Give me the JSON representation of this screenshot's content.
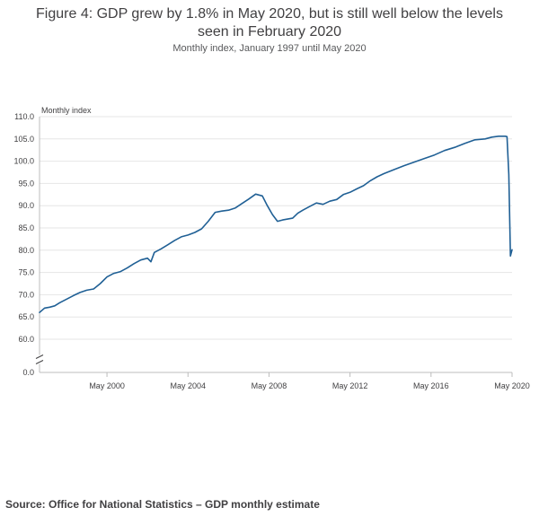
{
  "header": {
    "title_line1": "Figure 4: GDP grew by 1.8% in May 2020, but is still well below the levels",
    "title_line2": "seen in February 2020",
    "subtitle": "Monthly index, January 1997 until May 2020"
  },
  "footer": {
    "source": "Source: Office for National Statistics – GDP monthly estimate"
  },
  "colors": {
    "line": "#206095",
    "grid": "#e6e6e6",
    "axis": "#bcbcbc"
  },
  "chart_data": {
    "type": "line",
    "title": "Figure 4: GDP grew by 1.8% in May 2020, but is still well below the levels seen in February 2020",
    "subtitle": "Monthly index, January 1997 until May 2020",
    "ylabel": "Monthly index",
    "xlabel": "",
    "ylim": [
      60,
      110
    ],
    "axis_break": true,
    "y_ticks": [
      0.0,
      60.0,
      65.0,
      70.0,
      75.0,
      80.0,
      85.0,
      90.0,
      95.0,
      100.0,
      105.0,
      110.0
    ],
    "y_tick_labels": [
      "0.0",
      "60.0",
      "65.0",
      "70.0",
      "75.0",
      "80.0",
      "85.0",
      "90.0",
      "95.0",
      "100.0",
      "105.0",
      "110.0"
    ],
    "x_ticks": [
      2000.33,
      2004.33,
      2008.33,
      2012.33,
      2016.33,
      2020.33
    ],
    "x_tick_labels": [
      "May 2000",
      "May 2004",
      "May 2008",
      "May 2012",
      "May 2016",
      "May 2020"
    ],
    "xlim": [
      1997.0,
      2020.33
    ],
    "grid": true,
    "series": [
      {
        "name": "Monthly index",
        "x": [
          1997.0,
          1997.25,
          1997.5,
          1997.75,
          1998.0,
          1998.33,
          1998.67,
          1999.0,
          1999.33,
          1999.67,
          2000.0,
          2000.33,
          2000.67,
          2001.0,
          2001.33,
          2001.67,
          2002.0,
          2002.33,
          2002.5,
          2002.67,
          2003.0,
          2003.33,
          2003.67,
          2004.0,
          2004.33,
          2004.67,
          2005.0,
          2005.33,
          2005.67,
          2006.0,
          2006.33,
          2006.67,
          2007.0,
          2007.33,
          2007.67,
          2008.0,
          2008.25,
          2008.5,
          2008.75,
          2009.0,
          2009.25,
          2009.5,
          2009.75,
          2010.0,
          2010.33,
          2010.67,
          2011.0,
          2011.33,
          2011.67,
          2012.0,
          2012.33,
          2012.67,
          2013.0,
          2013.33,
          2013.67,
          2014.0,
          2014.5,
          2015.0,
          2015.5,
          2016.0,
          2016.5,
          2017.0,
          2017.5,
          2018.0,
          2018.5,
          2019.0,
          2019.33,
          2019.67,
          2020.0,
          2020.08,
          2020.17,
          2020.25,
          2020.33
        ],
        "values": [
          66.0,
          67.0,
          67.2,
          67.5,
          68.2,
          69.0,
          69.8,
          70.5,
          71.0,
          71.3,
          72.5,
          74.0,
          74.8,
          75.2,
          76.0,
          77.0,
          77.8,
          78.2,
          77.4,
          79.5,
          80.3,
          81.2,
          82.2,
          83.0,
          83.4,
          84.0,
          84.8,
          86.5,
          88.5,
          88.8,
          89.0,
          89.5,
          90.5,
          91.5,
          92.6,
          92.2,
          90.0,
          88.0,
          86.5,
          86.8,
          87.0,
          87.2,
          88.3,
          89.0,
          89.8,
          90.6,
          90.3,
          91.0,
          91.4,
          92.5,
          93.0,
          93.8,
          94.5,
          95.6,
          96.5,
          97.2,
          98.1,
          99.0,
          99.8,
          100.6,
          101.4,
          102.4,
          103.1,
          104.0,
          104.8,
          105.0,
          105.4,
          105.6,
          105.6,
          105.5,
          97.0,
          78.7,
          80.1
        ]
      }
    ]
  }
}
